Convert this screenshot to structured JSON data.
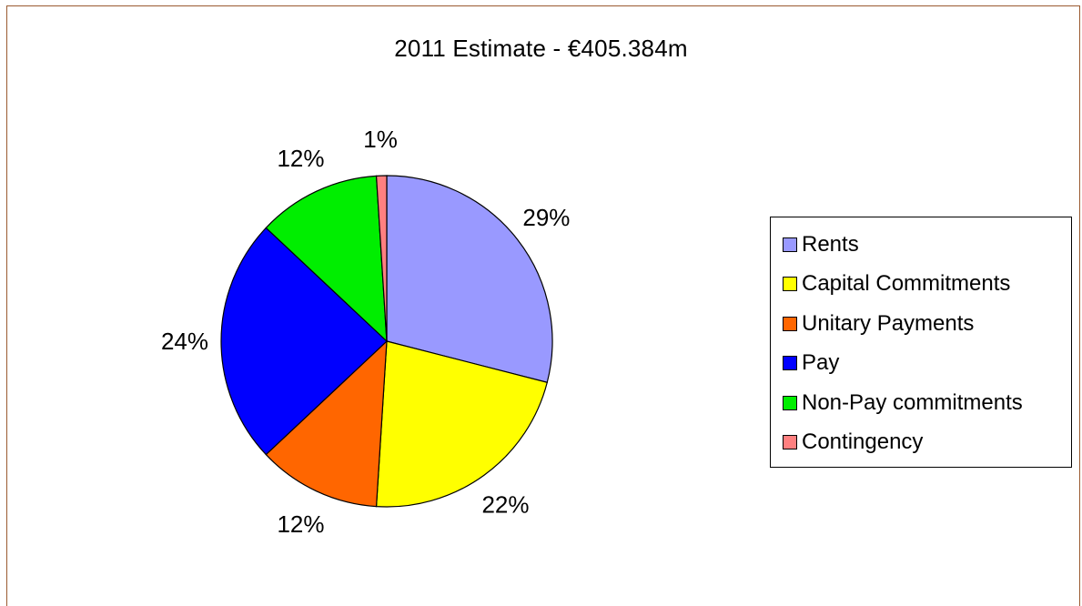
{
  "chart_data": {
    "type": "pie",
    "title": "2011 Estimate - €405.384m",
    "categories": [
      "Rents",
      "Capital Commitments",
      "Unitary Payments",
      "Pay",
      "Non-Pay commitments",
      "Contingency"
    ],
    "values": [
      29,
      22,
      12,
      24,
      12,
      1
    ],
    "value_labels": [
      "29%",
      "22%",
      "12%",
      "24%",
      "12%",
      "1%"
    ],
    "colors": [
      "#9999ff",
      "#ffff00",
      "#ff6600",
      "#0000ff",
      "#00ee00",
      "#ff8080"
    ],
    "legend_position": "right",
    "start_angle_deg": 0,
    "direction": "clockwise"
  }
}
